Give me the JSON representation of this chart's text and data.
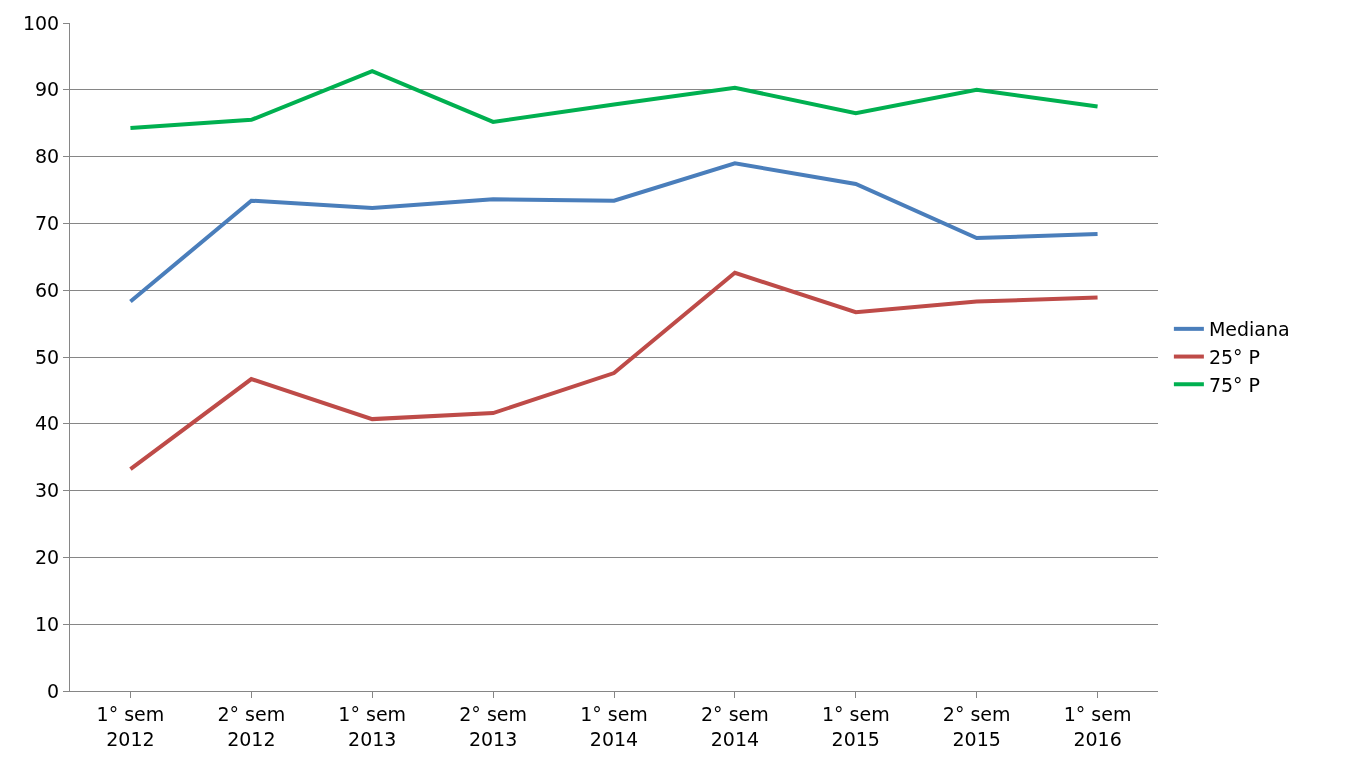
{
  "chart_data": {
    "type": "line",
    "categories": [
      "1° sem\n2012",
      "2° sem\n2012",
      "1° sem\n2013",
      "2° sem\n2013",
      "1° sem\n2014",
      "2° sem\n2014",
      "1° sem\n2015",
      "2° sem\n2015",
      "1° sem\n2016"
    ],
    "series": [
      {
        "name": "Mediana",
        "color": "#4a7ebb",
        "values": [
          58.3,
          73.4,
          72.3,
          73.6,
          73.4,
          79.0,
          75.9,
          67.8,
          68.4
        ]
      },
      {
        "name": "25° P",
        "color": "#be4b48",
        "values": [
          33.2,
          46.7,
          40.7,
          41.6,
          47.6,
          62.6,
          56.7,
          58.3,
          58.9
        ]
      },
      {
        "name": "75° P",
        "color": "#00b050",
        "values": [
          84.3,
          85.5,
          92.8,
          85.2,
          87.8,
          90.3,
          86.5,
          90.0,
          87.5
        ]
      }
    ],
    "ylim": [
      0,
      100
    ],
    "yticks": [
      0,
      10,
      20,
      30,
      40,
      50,
      60,
      70,
      80,
      90,
      100
    ],
    "grid": "y",
    "legend": "right",
    "marker": "none",
    "line_style": "solid"
  }
}
